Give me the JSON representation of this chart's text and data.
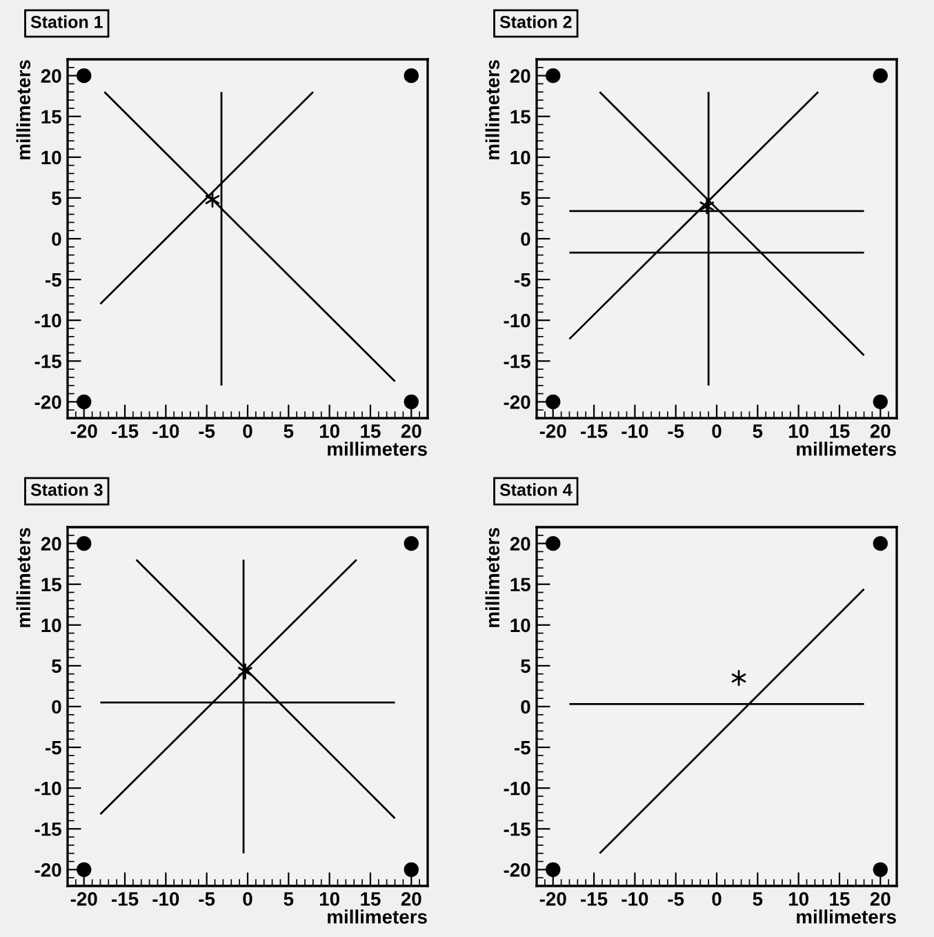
{
  "chart_data": [
    {
      "type": "line",
      "title": "Station 1",
      "xlabel": "millimeters",
      "ylabel": "millimeters",
      "xlim": [
        -22,
        22
      ],
      "ylim": [
        -22,
        22
      ],
      "xticks": [
        -20,
        -15,
        -10,
        -5,
        0,
        5,
        10,
        15,
        20
      ],
      "yticks": [
        -20,
        -15,
        -10,
        -5,
        0,
        5,
        10,
        15,
        20
      ],
      "series": [
        {
          "color": "#000000",
          "x": [
            -17.5,
            18
          ],
          "values": [
            18,
            -17.5
          ]
        },
        {
          "color": "#000000",
          "x": [
            -18,
            8
          ],
          "values": [
            -8,
            18
          ]
        },
        {
          "color": "#000000",
          "x": [
            -3.2,
            -3.2
          ],
          "values": [
            -18,
            18
          ]
        },
        {
          "type": "scatter",
          "color": "#000000",
          "marker": "circle",
          "x": [
            -20,
            20,
            -20,
            20
          ],
          "values": [
            20,
            20,
            -20,
            -20
          ]
        },
        {
          "type": "scatter",
          "color": "#000000",
          "marker": "cross",
          "x": [
            -4.3
          ],
          "values": [
            4.8
          ]
        }
      ]
    },
    {
      "type": "line",
      "title": "Station 2",
      "xlabel": "millimeters",
      "ylabel": "millimeters",
      "xlim": [
        -22,
        22
      ],
      "ylim": [
        -22,
        22
      ],
      "xticks": [
        -20,
        -15,
        -10,
        -5,
        0,
        5,
        10,
        15,
        20
      ],
      "yticks": [
        -20,
        -15,
        -10,
        -5,
        0,
        5,
        10,
        15,
        20
      ],
      "series": [
        {
          "color": "#000000",
          "x": [
            -14.3,
            18
          ],
          "values": [
            18,
            -14.3
          ]
        },
        {
          "color": "#000000",
          "x": [
            -18,
            12.4
          ],
          "values": [
            -12.3,
            18
          ]
        },
        {
          "color": "#000000",
          "x": [
            -1,
            -1
          ],
          "values": [
            -18,
            18
          ]
        },
        {
          "color": "#000000",
          "x": [
            -18,
            18
          ],
          "values": [
            3.4,
            3.4
          ]
        },
        {
          "color": "#000000",
          "x": [
            -18,
            18
          ],
          "values": [
            -1.7,
            -1.7
          ]
        },
        {
          "type": "scatter",
          "color": "#000000",
          "marker": "circle",
          "x": [
            -20,
            20,
            -20,
            20
          ],
          "values": [
            20,
            20,
            -20,
            -20
          ]
        },
        {
          "type": "scatter",
          "color": "#000000",
          "marker": "cross",
          "x": [
            -1.2
          ],
          "values": [
            4
          ]
        }
      ]
    },
    {
      "type": "line",
      "title": "Station 3",
      "xlabel": "millimeters",
      "ylabel": "millimeters",
      "xlim": [
        -22,
        22
      ],
      "ylim": [
        -22,
        22
      ],
      "xticks": [
        -20,
        -15,
        -10,
        -5,
        0,
        5,
        10,
        15,
        20
      ],
      "yticks": [
        -20,
        -15,
        -10,
        -5,
        0,
        5,
        10,
        15,
        20
      ],
      "series": [
        {
          "color": "#000000",
          "x": [
            -13.6,
            18
          ],
          "values": [
            18,
            -13.7
          ]
        },
        {
          "color": "#000000",
          "x": [
            -18,
            13.3
          ],
          "values": [
            -13.2,
            18
          ]
        },
        {
          "color": "#000000",
          "x": [
            -0.5,
            -0.5
          ],
          "values": [
            -18,
            18
          ]
        },
        {
          "color": "#000000",
          "x": [
            -18,
            18
          ],
          "values": [
            0.5,
            0.5
          ]
        },
        {
          "type": "scatter",
          "color": "#000000",
          "marker": "circle",
          "x": [
            -20,
            20,
            -20,
            20
          ],
          "values": [
            20,
            20,
            -20,
            -20
          ]
        },
        {
          "type": "scatter",
          "color": "#000000",
          "marker": "cross",
          "x": [
            -0.3
          ],
          "values": [
            4.3
          ]
        }
      ]
    },
    {
      "type": "line",
      "title": "Station 4",
      "xlabel": "millimeters",
      "ylabel": "millimeters",
      "xlim": [
        -22,
        22
      ],
      "ylim": [
        -22,
        22
      ],
      "xticks": [
        -20,
        -15,
        -10,
        -5,
        0,
        5,
        10,
        15,
        20
      ],
      "yticks": [
        -20,
        -15,
        -10,
        -5,
        0,
        5,
        10,
        15,
        20
      ],
      "series": [
        {
          "color": "#000000",
          "x": [
            -14.3,
            18
          ],
          "values": [
            -18,
            14.4
          ]
        },
        {
          "color": "#000000",
          "x": [
            -18,
            18
          ],
          "values": [
            0.3,
            0.3
          ]
        },
        {
          "type": "scatter",
          "color": "#000000",
          "marker": "circle",
          "x": [
            -20,
            20,
            -20,
            20
          ],
          "values": [
            20,
            20,
            -20,
            -20
          ]
        },
        {
          "type": "scatter",
          "color": "#000000",
          "marker": "cross",
          "x": [
            2.7
          ],
          "values": [
            3.5
          ]
        }
      ]
    }
  ]
}
